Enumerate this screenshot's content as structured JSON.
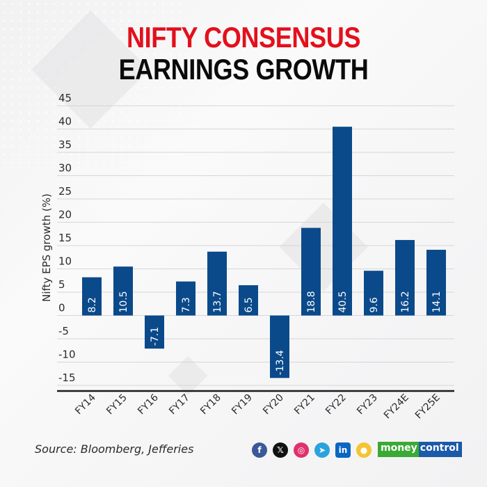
{
  "header": {
    "title_line1": "NIFTY CONSENSUS",
    "title_line2": "EARNINGS GROWTH"
  },
  "colors": {
    "bar": "#0b4a8a",
    "title_red": "#e3101b",
    "title_black": "#0a0a0a",
    "grid": "#d6d6d6",
    "axis": "#1a1a1a"
  },
  "chart_data": {
    "type": "bar",
    "title": "NIFTY CONSENSUS EARNINGS GROWTH",
    "xlabel": "",
    "ylabel": "Nifty EPS growth (%)",
    "categories": [
      "FY14",
      "FY15",
      "FY16",
      "FY17",
      "FY18",
      "FY19",
      "FY20",
      "FY21",
      "FY22",
      "FY23",
      "FY24E",
      "FY25E"
    ],
    "values": [
      8.2,
      10.5,
      -7.1,
      7.3,
      13.7,
      6.5,
      -13.4,
      18.8,
      40.5,
      9.6,
      16.2,
      14.1
    ],
    "value_labels": [
      "8.2",
      "10.5",
      "-7.1",
      "7.3",
      "13.7",
      "6.5",
      "-13.4",
      "18.8",
      "40.5",
      "9.6",
      "16.2",
      "14.1"
    ],
    "ylim": [
      -15,
      45
    ],
    "yticks": [
      45,
      40,
      35,
      30,
      25,
      20,
      15,
      10,
      5,
      0,
      -5,
      -10,
      -15
    ],
    "ytick_labels": [
      "45",
      "40",
      "35",
      "30",
      "25",
      "20",
      "15",
      "10",
      "5",
      "0",
      "-5",
      "-10",
      "-15"
    ],
    "grid": true,
    "legend": "none"
  },
  "footer": {
    "source": "Source: Bloomberg, Jefferies",
    "social": [
      {
        "name": "facebook-icon",
        "glyph": "f",
        "color": "#3b5998"
      },
      {
        "name": "x-icon",
        "glyph": "𝕏",
        "color": "#111111"
      },
      {
        "name": "instagram-icon",
        "glyph": "◎",
        "color": "#e1306c"
      },
      {
        "name": "telegram-icon",
        "glyph": "➤",
        "color": "#2aa3dd"
      },
      {
        "name": "linkedin-icon",
        "glyph": "in",
        "color": "#0a66c2"
      },
      {
        "name": "koo-icon",
        "glyph": "●",
        "color": "#f4c531"
      }
    ],
    "brand_part1": "money",
    "brand_part2": "control"
  }
}
